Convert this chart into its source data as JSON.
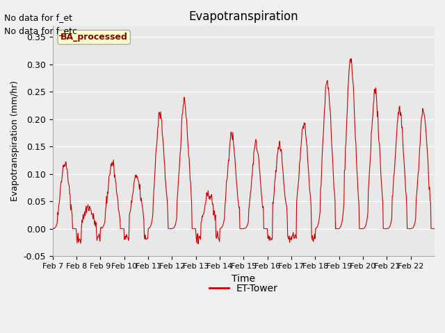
{
  "title": "Evapotranspiration",
  "xlabel": "Time",
  "ylabel": "Evapotranspiration (mm/hr)",
  "ylim": [
    -0.05,
    0.37
  ],
  "yticks": [
    -0.05,
    0.0,
    0.05,
    0.1,
    0.15,
    0.2,
    0.25,
    0.3,
    0.35
  ],
  "text_no_data": [
    "No data for f_et",
    "No data for f_etc"
  ],
  "legend_label": "ET-Tower",
  "legend_box_label": "BA_processed",
  "line_color": "#cc0000",
  "legend_line_color": "#cc0000",
  "fig_bg_color": "#f0f0f0",
  "axes_bg_color": "#e8e8e8",
  "x_labels": [
    "Feb 7",
    "Feb 8",
    "Feb 9",
    "Feb 10",
    "Feb 11",
    "Feb 12",
    "Feb 13",
    "Feb 14",
    "Feb 15",
    "Feb 16",
    "Feb 17",
    "Feb 18",
    "Feb 19",
    "Feb 20",
    "Feb 21",
    "Feb 22"
  ],
  "peak_heights": [
    0.12,
    0.04,
    0.12,
    0.095,
    0.21,
    0.23,
    0.065,
    0.17,
    0.155,
    0.15,
    0.19,
    0.27,
    0.31,
    0.25,
    0.22,
    0.215
  ],
  "peak_times": [
    0.52,
    0.5,
    0.5,
    0.52,
    0.5,
    0.52,
    0.55,
    0.5,
    0.52,
    0.5,
    0.52,
    0.5,
    0.48,
    0.5,
    0.52,
    0.52
  ],
  "double_peak_days": [
    0,
    2,
    4,
    5,
    7,
    8,
    11,
    12,
    13,
    14,
    15
  ],
  "n_days": 16,
  "n_per_day": 48
}
